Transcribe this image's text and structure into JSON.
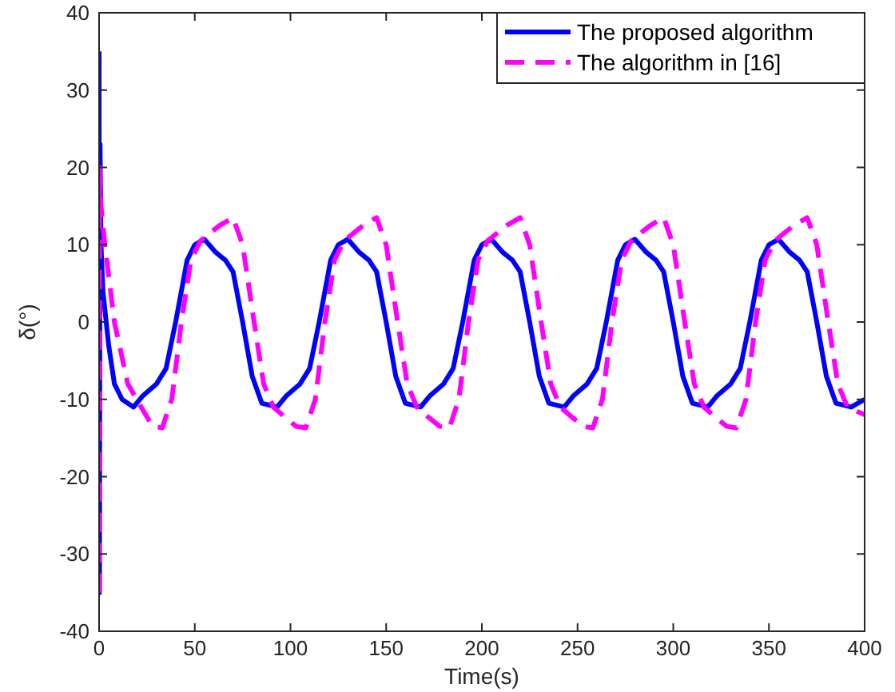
{
  "chart_data": {
    "type": "line",
    "xlabel": "Time(s)",
    "ylabel": "δ(°)",
    "xlim": [
      0,
      400
    ],
    "ylim": [
      -40,
      40
    ],
    "xticks": [
      0,
      50,
      100,
      150,
      200,
      250,
      300,
      350,
      400
    ],
    "yticks": [
      -40,
      -30,
      -20,
      -10,
      0,
      10,
      20,
      30,
      40
    ],
    "grid": false,
    "legend": "top right",
    "marker": "none",
    "series": [
      {
        "name": "The proposed algorithm",
        "color": "#0000ff",
        "line_style": "solid",
        "x": [
          0,
          0.2,
          0.5,
          1,
          2,
          5,
          8,
          12,
          18,
          23,
          30,
          35,
          40,
          46,
          50,
          55,
          61,
          66,
          70,
          75,
          80,
          85,
          93,
          98,
          105,
          110,
          115,
          121,
          125,
          130,
          136,
          141,
          145,
          150,
          155,
          160,
          168,
          173,
          180,
          185,
          190,
          196,
          200,
          205,
          211,
          216,
          220,
          225,
          230,
          235,
          243,
          248,
          255,
          260,
          265,
          271,
          275,
          280,
          286,
          291,
          295,
          300,
          305,
          310,
          318,
          323,
          330,
          335,
          340,
          346,
          350,
          355,
          361,
          366,
          370,
          375,
          380,
          385,
          393,
          400
        ],
        "values": [
          35,
          -35,
          23,
          10,
          4,
          -3,
          -8,
          -10,
          -11,
          -9.5,
          -8,
          -6,
          0,
          8,
          10,
          10.7,
          9,
          8,
          6.5,
          0,
          -7,
          -10.5,
          -11,
          -9.5,
          -8,
          -6,
          0,
          8,
          10,
          10.7,
          9,
          8,
          6.5,
          0,
          -7,
          -10.5,
          -11,
          -9.5,
          -8,
          -6,
          0,
          8,
          10,
          10.7,
          9,
          8,
          6.5,
          0,
          -7,
          -10.5,
          -11,
          -9.5,
          -8,
          -6,
          0,
          8,
          10,
          10.7,
          9,
          8,
          6.5,
          0,
          -7,
          -10.5,
          -11,
          -9.5,
          -8,
          -6,
          0,
          8,
          10,
          10.7,
          9,
          8,
          6.5,
          0,
          -7,
          -10.5,
          -11,
          -10
        ]
      },
      {
        "name": "The algorithm in [16]",
        "color": "#ff00ff",
        "line_style": "dashed",
        "x": [
          0,
          0.3,
          1,
          3,
          8,
          15,
          22,
          28,
          33,
          38,
          43,
          48,
          53,
          63,
          70,
          75,
          81,
          86,
          91,
          98,
          103,
          108,
          113,
          118,
          123,
          128,
          138,
          145,
          150,
          156,
          161,
          166,
          173,
          178,
          183,
          188,
          193,
          198,
          203,
          213,
          220,
          225,
          231,
          236,
          241,
          248,
          253,
          258,
          263,
          268,
          273,
          278,
          288,
          295,
          300,
          306,
          311,
          316,
          323,
          328,
          333,
          338,
          343,
          348,
          353,
          363,
          370,
          375,
          381,
          386,
          391,
          400
        ],
        "values": [
          -35,
          20,
          15,
          10,
          0,
          -8,
          -11,
          -13.5,
          -13.7,
          -10,
          0,
          8,
          10.5,
          12.5,
          13.5,
          10,
          0,
          -8,
          -11,
          -12.5,
          -13.5,
          -13.7,
          -10,
          0,
          8,
          10.5,
          12.5,
          13.5,
          10,
          0,
          -8,
          -11,
          -12.5,
          -13.5,
          -13.7,
          -10,
          0,
          8,
          10.5,
          12.5,
          13.5,
          10,
          0,
          -8,
          -11,
          -12.5,
          -13.5,
          -13.7,
          -10,
          0,
          8,
          10.5,
          12.5,
          13.5,
          10,
          0,
          -8,
          -11,
          -12.5,
          -13.5,
          -13.7,
          -10,
          0,
          8,
          10.5,
          12.5,
          13.5,
          10,
          0,
          -8,
          -11,
          -12
        ]
      }
    ]
  }
}
